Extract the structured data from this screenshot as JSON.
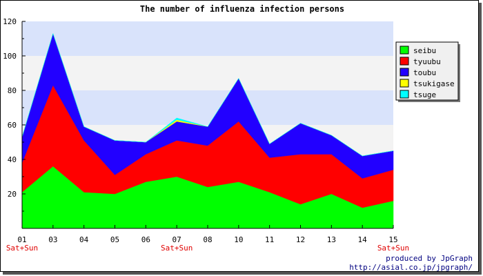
{
  "chart_data": {
    "type": "area",
    "stacked": true,
    "title": "The number of influenza infection persons",
    "xlabel": "",
    "ylabel": "",
    "categories": [
      "01",
      "03",
      "04",
      "05",
      "06",
      "07",
      "08",
      "10",
      "11",
      "12",
      "13",
      "14",
      "15"
    ],
    "weekend_label": "Sat+Sun",
    "weekend_categories": [
      "01",
      "07",
      "15"
    ],
    "ylim": [
      0,
      120
    ],
    "yticks": [
      20,
      40,
      60,
      80,
      100,
      120
    ],
    "grid": true,
    "legend_position": "right",
    "series": [
      {
        "name": "seibu",
        "color": "#00ff00",
        "values": [
          21,
          36,
          21,
          20,
          27,
          30,
          24,
          27,
          21,
          14,
          20,
          12,
          16
        ]
      },
      {
        "name": "tyuubu",
        "color": "#ff0000",
        "values": [
          17,
          47,
          30,
          11,
          16,
          21,
          24,
          35,
          20,
          29,
          23,
          17,
          18
        ]
      },
      {
        "name": "toubu",
        "color": "#2200ff",
        "values": [
          15,
          30,
          8,
          20,
          7,
          11,
          11,
          25,
          8,
          18,
          11,
          13,
          11
        ]
      },
      {
        "name": "tsukigase",
        "color": "#ffff00",
        "values": [
          0,
          0,
          0,
          0,
          0,
          1,
          0,
          0,
          0,
          0,
          0,
          0,
          0
        ]
      },
      {
        "name": "tsuge",
        "color": "#00ffff",
        "values": [
          0,
          0,
          0,
          0,
          0,
          1,
          0,
          0,
          0,
          0,
          0,
          0,
          0
        ]
      }
    ]
  },
  "footer": {
    "credit_line1": "produced by JpGraph",
    "credit_line2": "http://asial.co.jp/jpgraph/"
  },
  "colors": {
    "band_blue": "#d9e3fb",
    "band_gray": "#f3f3f3",
    "weekend_label": "#e00000",
    "credit_text": "#000080"
  }
}
